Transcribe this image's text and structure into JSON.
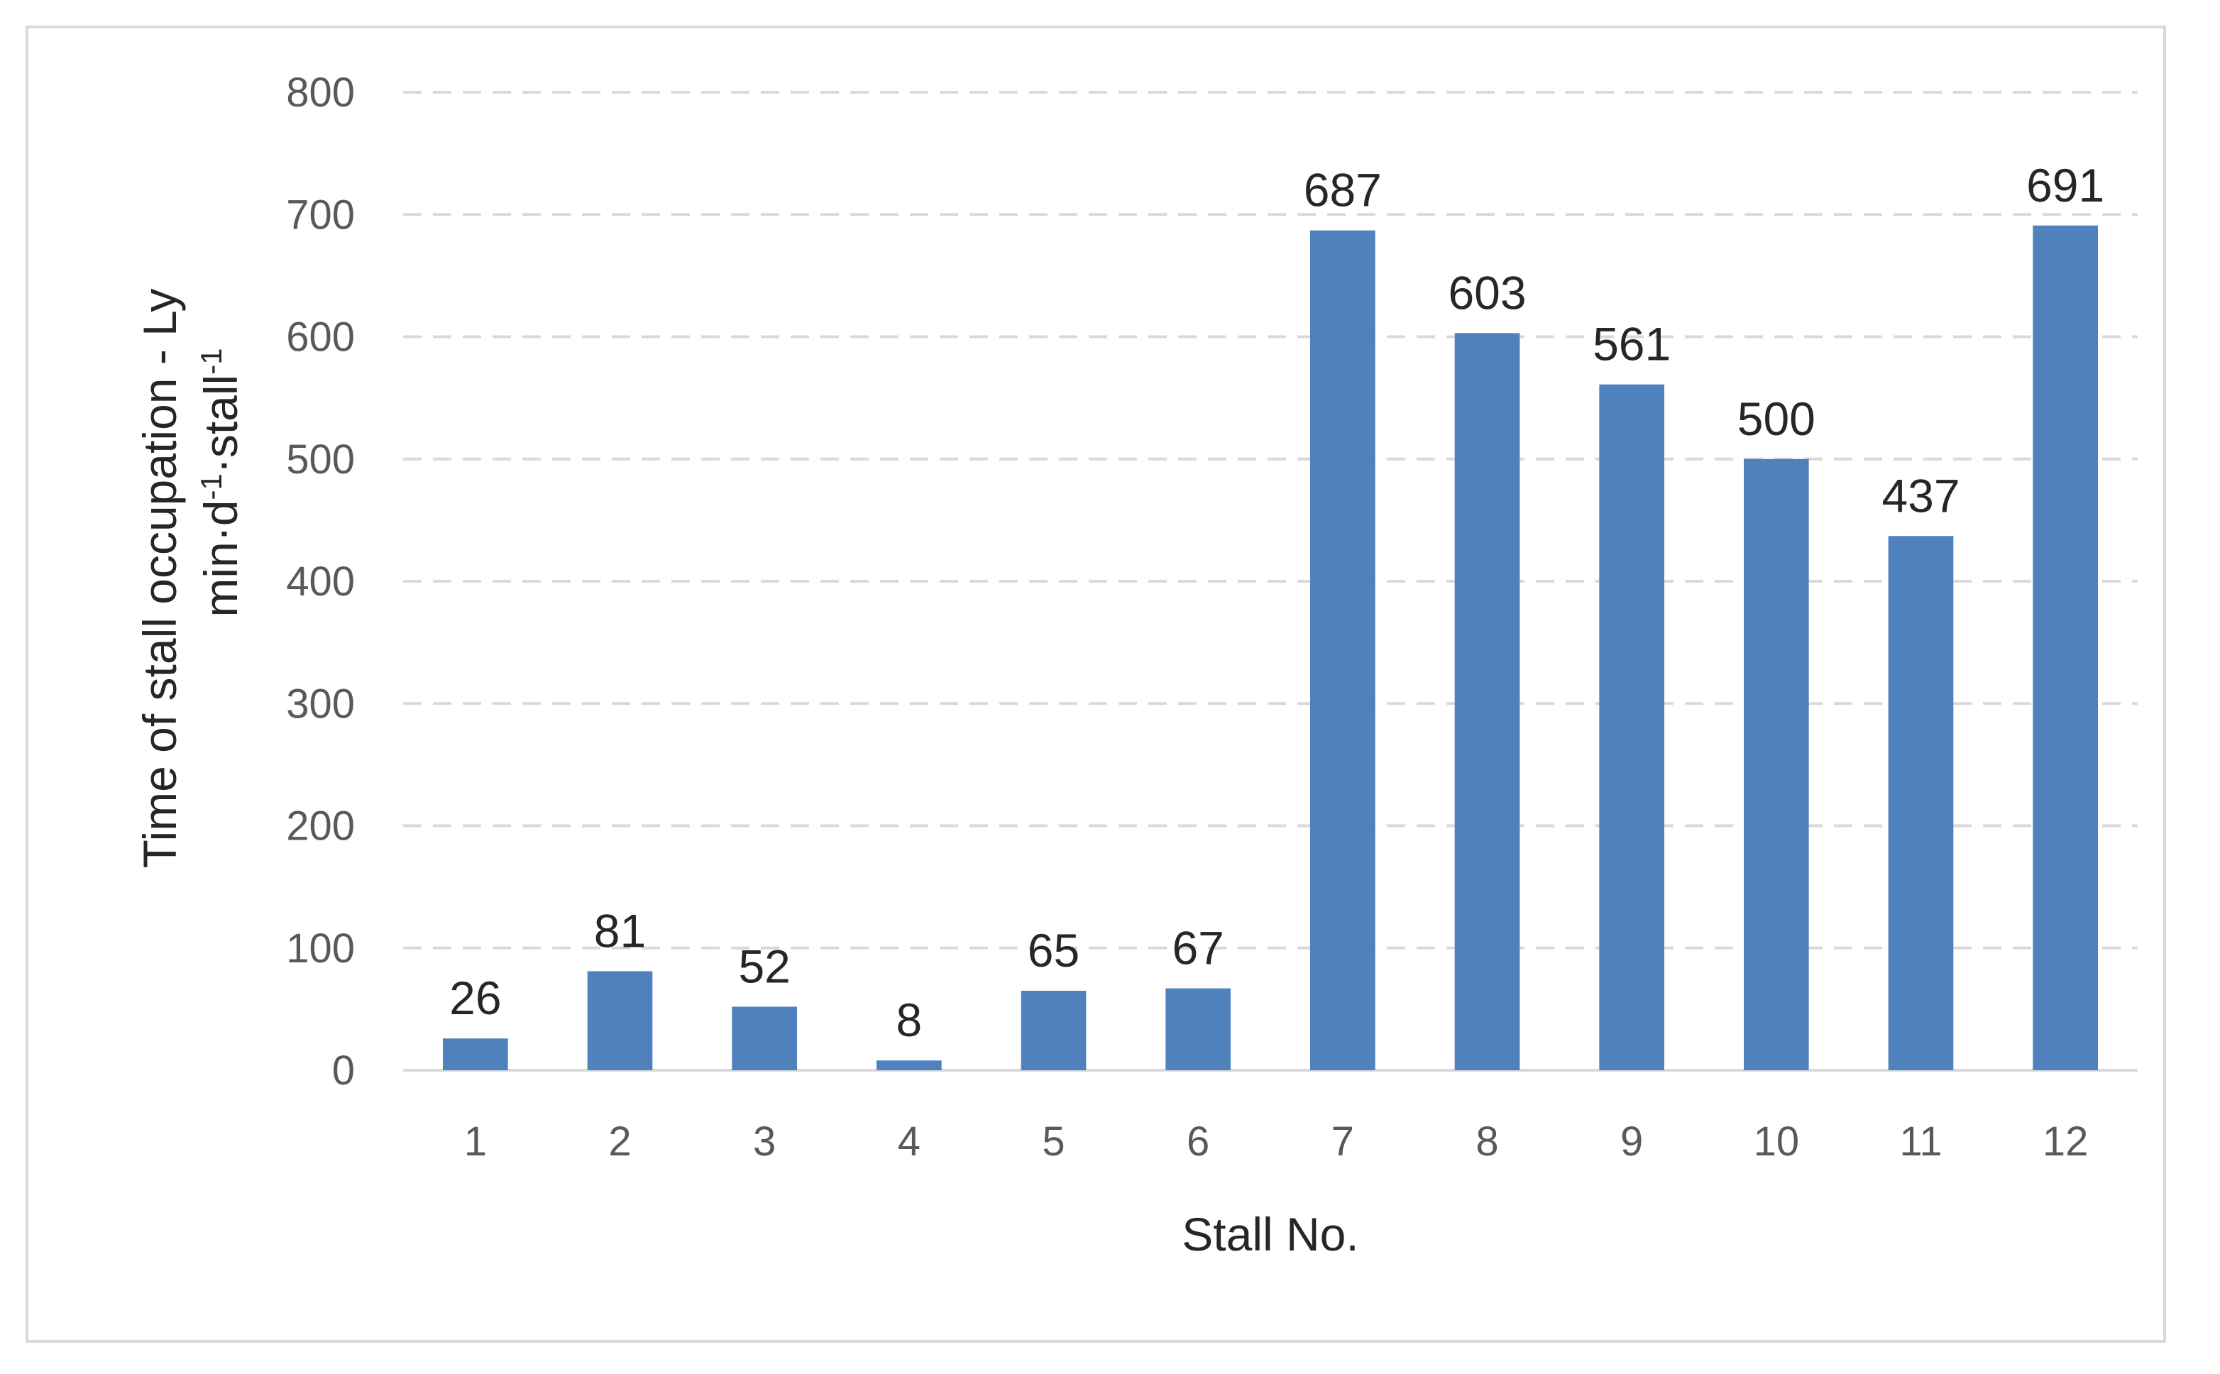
{
  "chart_data": {
    "type": "bar",
    "categories": [
      "1",
      "2",
      "3",
      "4",
      "5",
      "6",
      "7",
      "8",
      "9",
      "10",
      "11",
      "12"
    ],
    "values": [
      26,
      81,
      52,
      8,
      65,
      67,
      687,
      603,
      561,
      500,
      437,
      691
    ],
    "data_labels": [
      "26",
      "81",
      "52",
      "8",
      "65",
      "67",
      "687",
      "603",
      "561",
      "500",
      "437",
      "691"
    ],
    "xlabel": "Stall No.",
    "ylabel_line1": "Time of stall occupation - Ly",
    "ylabel_line2_text": "min·d",
    "ylabel_sup1": "-1",
    "ylabel_mid": "·stall",
    "ylabel_sup2": "-1",
    "ylim": [
      0,
      800
    ],
    "yticks": [
      0,
      100,
      200,
      300,
      400,
      500,
      600,
      700,
      800
    ],
    "ytick_labels": [
      "0",
      "100",
      "200",
      "300",
      "400",
      "500",
      "600",
      "700",
      "800"
    ],
    "grid": true,
    "legend": "none",
    "bar_color": "#4f81bd"
  }
}
